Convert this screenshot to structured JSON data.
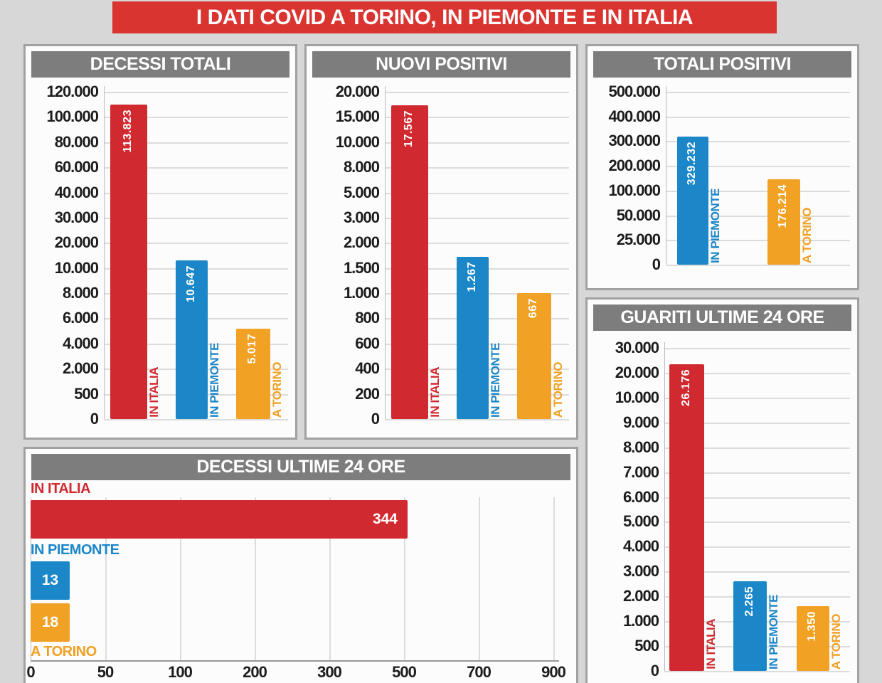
{
  "title": "I DATI COVID A TORINO, IN PIEMONTE E IN ITALIA",
  "colors": {
    "italia": "#d02a30",
    "piemonte": "#1b86c8",
    "torino": "#f1a124",
    "banner": "#da3431",
    "header_bg": "#7d7d7d"
  },
  "chart_data": [
    {
      "id": "decessi-totali",
      "type": "bar",
      "orientation": "vertical",
      "title": "DECESSI TOTALI",
      "grid": true,
      "ticks": [
        "120.000",
        "100.000",
        "80.000",
        "60.000",
        "40.000",
        "30.000",
        "20.000",
        "10.000",
        "8.000",
        "6.000",
        "4.000",
        "2.000",
        "500",
        "0"
      ],
      "series": [
        {
          "name": "IN ITALIA",
          "label": "113.823",
          "value": 113823,
          "color_key": "italia",
          "top_frac": 0.039
        },
        {
          "name": "IN PIEMONTE",
          "label": "10.647",
          "value": 10647,
          "color_key": "piemonte",
          "top_frac": 0.515
        },
        {
          "name": "A TORINO",
          "label": "5.017",
          "value": 5017,
          "color_key": "torino",
          "top_frac": 0.724
        }
      ]
    },
    {
      "id": "nuovi-positivi",
      "type": "bar",
      "orientation": "vertical",
      "title": "NUOVI POSITIVI",
      "grid": true,
      "ticks": [
        "20.000",
        "15.000",
        "10.000",
        "8.000",
        "5.000",
        "3.000",
        "2.000",
        "1.500",
        "1.000",
        "800",
        "600",
        "400",
        "200",
        "0"
      ],
      "series": [
        {
          "name": "IN ITALIA",
          "label": "17.567",
          "value": 17567,
          "color_key": "italia",
          "top_frac": 0.041
        },
        {
          "name": "IN PIEMONTE",
          "label": "1.267",
          "value": 1267,
          "color_key": "piemonte",
          "top_frac": 0.504
        },
        {
          "name": "A TORINO",
          "label": "667",
          "value": 667,
          "color_key": "torino",
          "top_frac": 0.615
        }
      ]
    },
    {
      "id": "totali-positivi",
      "type": "bar",
      "orientation": "vertical",
      "title": "TOTALI POSITIVI",
      "grid": true,
      "ticks": [
        "500.000",
        "400.000",
        "300.000",
        "200.000",
        "100.000",
        "50.000",
        "25.000",
        "0"
      ],
      "series": [
        {
          "name": "IN PIEMONTE",
          "label": "329.232",
          "value": 329232,
          "color_key": "piemonte",
          "top_frac": 0.259
        },
        {
          "name": "A TORINO",
          "label": "176.214",
          "value": 176214,
          "color_key": "torino",
          "top_frac": 0.506
        }
      ]
    },
    {
      "id": "guariti-ultime-24-ore",
      "type": "bar",
      "orientation": "vertical",
      "title": "GUARITI ULTIME 24 ORE",
      "grid": true,
      "ticks": [
        "30.000",
        "20.000",
        "10.000",
        "9.000",
        "8.000",
        "7.000",
        "6.000",
        "5.000",
        "4.000",
        "3.000",
        "2.000",
        "1.000",
        "500",
        "0"
      ],
      "series": [
        {
          "name": "IN ITALIA",
          "label": "26.176",
          "value": 26176,
          "color_key": "italia",
          "top_frac": 0.051
        },
        {
          "name": "IN PIEMONTE",
          "label": "2.265",
          "value": 2265,
          "color_key": "piemonte",
          "top_frac": 0.722
        },
        {
          "name": "A TORINO",
          "label": "1.350",
          "value": 1350,
          "color_key": "torino",
          "top_frac": 0.8
        }
      ]
    },
    {
      "id": "decessi-ultime-24-ore",
      "type": "bar",
      "orientation": "horizontal",
      "title": "DECESSI ULTIME 24 ORE",
      "grid": true,
      "ticks": [
        "0",
        "50",
        "100",
        "200",
        "300",
        "500",
        "700",
        "900"
      ],
      "series": [
        {
          "name": "IN ITALIA",
          "label": "344",
          "value": 344,
          "color_key": "italia",
          "len_frac": 0.721
        },
        {
          "name": "IN PIEMONTE",
          "label": "13",
          "value": 13,
          "color_key": "piemonte",
          "len_frac": 0.075
        },
        {
          "name": "A TORINO",
          "label": "18",
          "value": 18,
          "color_key": "torino",
          "len_frac": 0.075
        }
      ]
    }
  ]
}
